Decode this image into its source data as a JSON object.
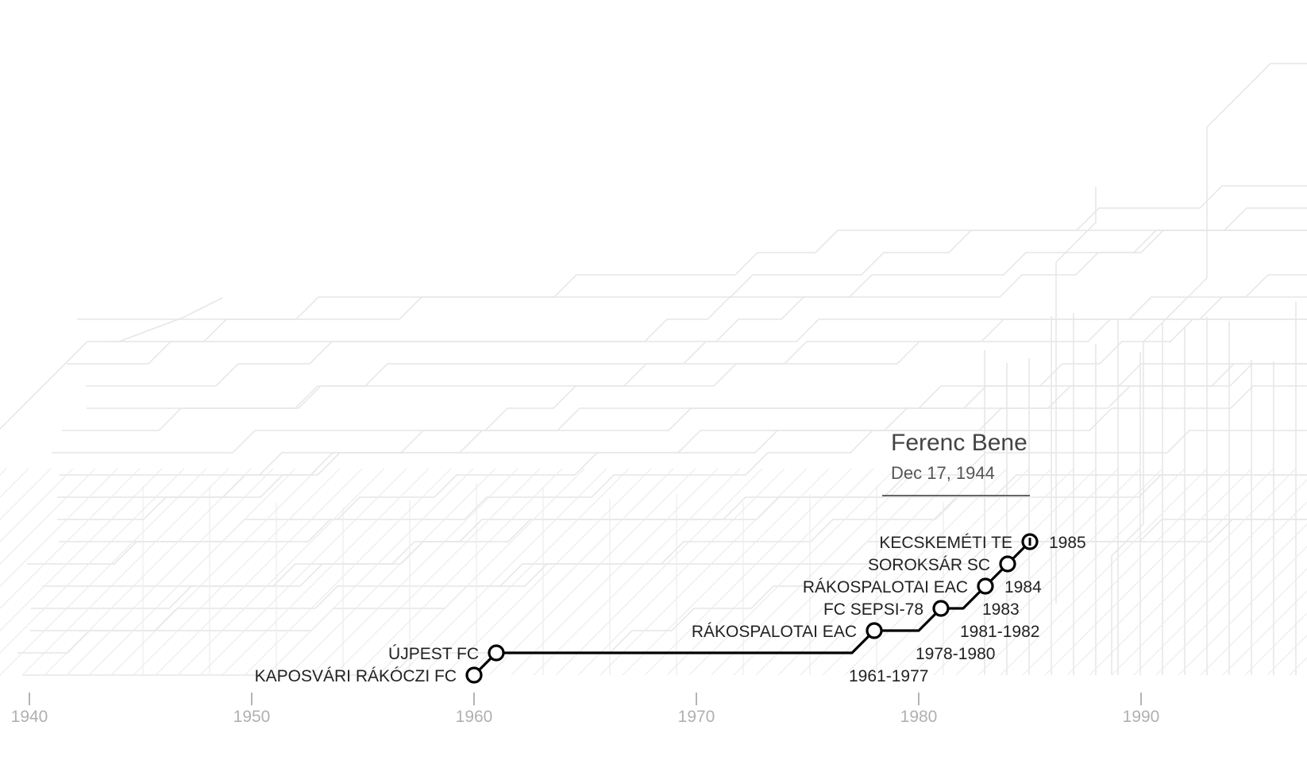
{
  "chart_data": {
    "type": "line",
    "player": {
      "name": "Ferenc Bene",
      "birth_date": "Dec 17, 1944"
    },
    "x_axis": {
      "range": [
        1939,
        1994
      ],
      "ticks": [
        1940,
        1950,
        1960,
        1970,
        1980,
        1990
      ],
      "tick_labels": [
        "1940",
        "1950",
        "1960",
        "1970",
        "1980",
        "1990"
      ]
    },
    "stations": [
      {
        "club": "KAPOSVÁRI RÁKÓCZI FC",
        "start": 1960,
        "end": 1960,
        "years_label": "",
        "label_side": "left"
      },
      {
        "club": "ÚJPEST FC",
        "start": 1961,
        "end": 1977,
        "years_label": "1961-1977",
        "label_side": "left"
      },
      {
        "club": "RÁKOSPALOTAI EAC",
        "start": 1978,
        "end": 1980,
        "years_label": "1978-1980",
        "label_side": "left"
      },
      {
        "club": "FC SEPSI-78",
        "start": 1981,
        "end": 1982,
        "years_label": "1981-1982",
        "label_side": "left"
      },
      {
        "club": "RÁKOSPALOTAI EAC",
        "start": 1983,
        "end": 1983,
        "years_label": "1983",
        "label_side": "left"
      },
      {
        "club": "SOROKSÁR SC",
        "start": 1984,
        "end": 1984,
        "years_label": "1984",
        "label_side": "left"
      },
      {
        "club": "KECSKEMÉTI TE",
        "start": 1985,
        "end": 1985,
        "years_label": "1985",
        "label_side": "left"
      }
    ],
    "colors": {
      "line": "#000000",
      "background_lines": "#e6e6e6",
      "tick_labels": "#b0b0b0"
    },
    "grid": false,
    "legend": "none"
  }
}
